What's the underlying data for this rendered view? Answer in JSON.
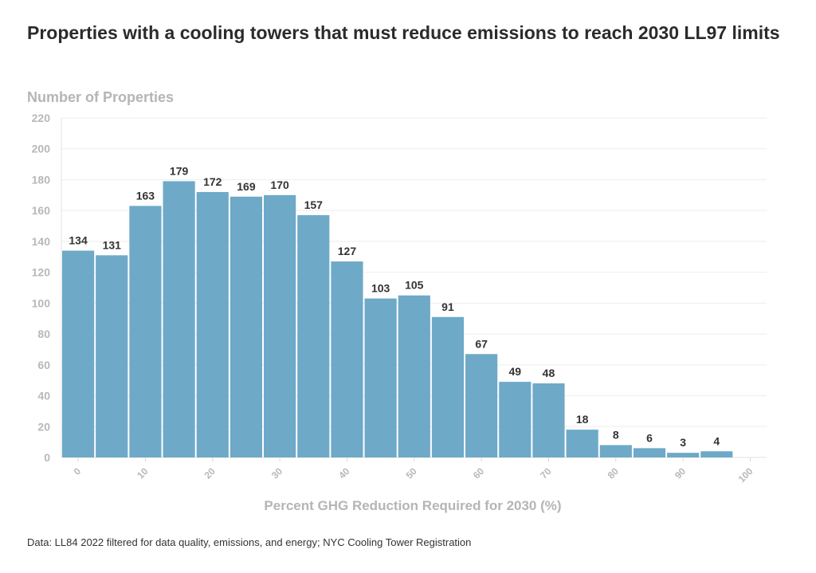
{
  "chart_data": {
    "type": "bar",
    "title": "Properties with a cooling towers that must reduce emissions to reach 2030 LL97 limits",
    "ylabel": "Number of Properties",
    "xlabel": "Percent GHG Reduction Required for 2030 (%)",
    "source": "Data: LL84 2022 filtered for data quality, emissions, and energy; NYC Cooling Tower Registration",
    "bin_width": 5,
    "bin_starts": [
      -2.5,
      2.5,
      7.5,
      12.5,
      17.5,
      22.5,
      27.5,
      32.5,
      37.5,
      42.5,
      47.5,
      52.5,
      57.5,
      62.5,
      67.5,
      72.5,
      77.5,
      82.5,
      87.5,
      92.5
    ],
    "values": [
      134,
      131,
      163,
      179,
      172,
      169,
      170,
      157,
      127,
      103,
      105,
      91,
      67,
      49,
      48,
      18,
      8,
      6,
      3,
      4
    ],
    "xlim": [
      -2.5,
      100
    ],
    "ylim": [
      0,
      220
    ],
    "y_ticks": [
      0,
      20,
      40,
      60,
      80,
      100,
      120,
      140,
      160,
      180,
      200,
      220
    ],
    "x_ticks": [
      0,
      10,
      20,
      30,
      40,
      50,
      60,
      70,
      80,
      90,
      100
    ],
    "bar_color": "#6ea9c8",
    "grid": true
  }
}
